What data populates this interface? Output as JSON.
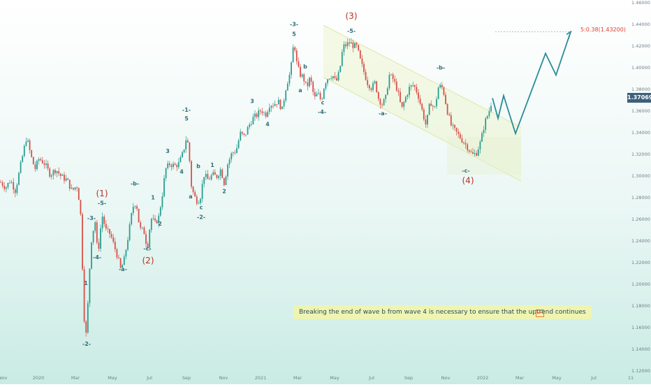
{
  "chart_data": {
    "type": "candlestick",
    "instrument_price": "1.37069",
    "y_ticks": [
      "1.46000",
      "1.44000",
      "1.42000",
      "1.40000",
      "1.38000",
      "1.36000",
      "1.34000",
      "1.32000",
      "1.30000",
      "1.28000",
      "1.26000",
      "1.24000",
      "1.22000",
      "1.20000",
      "1.18000",
      "1.16000",
      "1.14000",
      "1.12000"
    ],
    "x_ticks": [
      "Nov",
      "2020",
      "Mar",
      "May",
      "Jul",
      "Sep",
      "Nov",
      "2021",
      "Mar",
      "May",
      "Jul",
      "Sep",
      "Nov",
      "2022",
      "Mar",
      "May",
      "Jul",
      "11"
    ],
    "projection_target": "5:0.38(1.43200)",
    "note": "Breaking the end of wave b from wave 4 is necessary to ensure that the uptrend continues",
    "price_path": [
      [
        1,
        1.293
      ],
      [
        8,
        1.288
      ],
      [
        15,
        1.295
      ],
      [
        22,
        1.285
      ],
      [
        30,
        1.31
      ],
      [
        38,
        1.335
      ],
      [
        44,
        1.318
      ],
      [
        50,
        1.305
      ],
      [
        56,
        1.315
      ],
      [
        64,
        1.31
      ],
      [
        72,
        1.3
      ],
      [
        80,
        1.305
      ],
      [
        88,
        1.298
      ],
      [
        96,
        1.295
      ],
      [
        103,
        1.285
      ],
      [
        110,
        1.29
      ],
      [
        115,
        1.27
      ],
      [
        118,
        1.215
      ],
      [
        121,
        1.16
      ],
      [
        124,
        1.15
      ],
      [
        127,
        1.2
      ],
      [
        131,
        1.24
      ],
      [
        136,
        1.258
      ],
      [
        140,
        1.225
      ],
      [
        146,
        1.263
      ],
      [
        152,
        1.248
      ],
      [
        158,
        1.245
      ],
      [
        163,
        1.235
      ],
      [
        168,
        1.225
      ],
      [
        173,
        1.212
      ],
      [
        178,
        1.222
      ],
      [
        184,
        1.245
      ],
      [
        190,
        1.27
      ],
      [
        195,
        1.275
      ],
      [
        200,
        1.25
      ],
      [
        206,
        1.248
      ],
      [
        211,
        1.232
      ],
      [
        216,
        1.26
      ],
      [
        222,
        1.255
      ],
      [
        227,
        1.26
      ],
      [
        232,
        1.28
      ],
      [
        237,
        1.305
      ],
      [
        243,
        1.31
      ],
      [
        250,
        1.308
      ],
      [
        256,
        1.31
      ],
      [
        262,
        1.32
      ],
      [
        267,
        1.335
      ],
      [
        270,
        1.325
      ],
      [
        274,
        1.29
      ],
      [
        278,
        1.28
      ],
      [
        283,
        1.275
      ],
      [
        287,
        1.28
      ],
      [
        292,
        1.3
      ],
      [
        298,
        1.295
      ],
      [
        304,
        1.3
      ],
      [
        310,
        1.298
      ],
      [
        316,
        1.305
      ],
      [
        321,
        1.292
      ],
      [
        326,
        1.31
      ],
      [
        332,
        1.32
      ],
      [
        338,
        1.322
      ],
      [
        344,
        1.338
      ],
      [
        350,
        1.335
      ],
      [
        356,
        1.345
      ],
      [
        362,
        1.352
      ],
      [
        368,
        1.355
      ],
      [
        374,
        1.36
      ],
      [
        380,
        1.355
      ],
      [
        386,
        1.365
      ],
      [
        392,
        1.365
      ],
      [
        398,
        1.368
      ],
      [
        404,
        1.36
      ],
      [
        410,
        1.383
      ],
      [
        416,
        1.395
      ],
      [
        421,
        1.425
      ],
      [
        424,
        1.405
      ],
      [
        429,
        1.393
      ],
      [
        434,
        1.39
      ],
      [
        439,
        1.38
      ],
      [
        444,
        1.39
      ],
      [
        450,
        1.37
      ],
      [
        455,
        1.375
      ],
      [
        460,
        1.368
      ],
      [
        465,
        1.385
      ],
      [
        470,
        1.39
      ],
      [
        476,
        1.392
      ],
      [
        481,
        1.385
      ],
      [
        486,
        1.395
      ],
      [
        491,
        1.418
      ],
      [
        496,
        1.42
      ],
      [
        501,
        1.422
      ],
      [
        506,
        1.419
      ],
      [
        511,
        1.418
      ],
      [
        516,
        1.405
      ],
      [
        521,
        1.395
      ],
      [
        526,
        1.385
      ],
      [
        532,
        1.38
      ],
      [
        537,
        1.385
      ],
      [
        542,
        1.37
      ],
      [
        547,
        1.365
      ],
      [
        552,
        1.37
      ],
      [
        557,
        1.392
      ],
      [
        563,
        1.388
      ],
      [
        569,
        1.378
      ],
      [
        575,
        1.36
      ],
      [
        580,
        1.37
      ],
      [
        586,
        1.38
      ],
      [
        592,
        1.383
      ],
      [
        598,
        1.375
      ],
      [
        604,
        1.36
      ],
      [
        610,
        1.345
      ],
      [
        616,
        1.368
      ],
      [
        622,
        1.36
      ],
      [
        628,
        1.382
      ],
      [
        634,
        1.38
      ],
      [
        640,
        1.36
      ],
      [
        646,
        1.345
      ],
      [
        652,
        1.34
      ],
      [
        658,
        1.335
      ],
      [
        664,
        1.33
      ],
      [
        670,
        1.325
      ],
      [
        676,
        1.318
      ],
      [
        682,
        1.32
      ],
      [
        688,
        1.33
      ],
      [
        694,
        1.348
      ],
      [
        700,
        1.358
      ],
      [
        705,
        1.37069
      ]
    ],
    "projection_path": [
      [
        705,
        1.37069
      ],
      [
        713,
        1.352
      ],
      [
        721,
        1.373
      ],
      [
        738,
        1.338
      ],
      [
        781,
        1.412
      ],
      [
        796,
        1.392
      ],
      [
        817,
        1.432
      ]
    ],
    "channel": {
      "upper": [
        [
          463,
          1.438
        ],
        [
          703,
          1.358
        ]
      ],
      "lower": [
        [
          463,
          1.39
        ],
        [
          746,
          1.294
        ]
      ],
      "area_end_x": 746,
      "area_top": 1.335,
      "area_bottom": 1.3
    },
    "wave_labels": [
      {
        "text": "-3-",
        "x": 421,
        "p": 1.437,
        "color": "#2d6e78"
      },
      {
        "text": "5",
        "x": 421,
        "p": 1.428,
        "color": "#2d6e78"
      },
      {
        "text": "(3)",
        "x": 503,
        "p": 1.444,
        "color": "#b73026",
        "big": true
      },
      {
        "text": "-5-",
        "x": 503,
        "p": 1.431,
        "color": "#2d6e78"
      },
      {
        "text": "b",
        "x": 437,
        "p": 1.398,
        "color": "#2d6e78"
      },
      {
        "text": "a",
        "x": 430,
        "p": 1.376,
        "color": "#2d6e78"
      },
      {
        "text": "c",
        "x": 462,
        "p": 1.365,
        "color": "#2d6e78"
      },
      {
        "text": "-4-",
        "x": 461,
        "p": 1.356,
        "color": "#2d6e78"
      },
      {
        "text": "-a-",
        "x": 548,
        "p": 1.355,
        "color": "#2d6e78"
      },
      {
        "text": "-b-",
        "x": 631,
        "p": 1.397,
        "color": "#2d6e78"
      },
      {
        "text": "-c-",
        "x": 667,
        "p": 1.302,
        "color": "#2d6e78"
      },
      {
        "text": "(4)",
        "x": 670,
        "p": 1.292,
        "color": "#b73026",
        "big": true
      },
      {
        "text": "3",
        "x": 361,
        "p": 1.366,
        "color": "#2d6e78"
      },
      {
        "text": "4",
        "x": 383,
        "p": 1.345,
        "color": "#2d6e78"
      },
      {
        "text": "-1-",
        "x": 267,
        "p": 1.358,
        "color": "#2d6e78"
      },
      {
        "text": "5",
        "x": 267,
        "p": 1.35,
        "color": "#2d6e78"
      },
      {
        "text": "3",
        "x": 240,
        "p": 1.32,
        "color": "#2d6e78"
      },
      {
        "text": "4",
        "x": 260,
        "p": 1.301,
        "color": "#2d6e78"
      },
      {
        "text": "b",
        "x": 284,
        "p": 1.306,
        "color": "#2d6e78"
      },
      {
        "text": "a",
        "x": 273,
        "p": 1.278,
        "color": "#2d6e78"
      },
      {
        "text": "c",
        "x": 288,
        "p": 1.268,
        "color": "#2d6e78"
      },
      {
        "text": "-2-",
        "x": 288,
        "p": 1.259,
        "color": "#2d6e78"
      },
      {
        "text": "1",
        "x": 304,
        "p": 1.307,
        "color": "#2d6e78"
      },
      {
        "text": "2",
        "x": 321,
        "p": 1.283,
        "color": "#2d6e78"
      },
      {
        "text": "1",
        "x": 219,
        "p": 1.277,
        "color": "#2d6e78"
      },
      {
        "text": "2",
        "x": 229,
        "p": 1.253,
        "color": "#2d6e78"
      },
      {
        "text": "-b-",
        "x": 193,
        "p": 1.29,
        "color": "#2d6e78"
      },
      {
        "text": "-c-",
        "x": 211,
        "p": 1.23,
        "color": "#2d6e78"
      },
      {
        "text": "(2)",
        "x": 212,
        "p": 1.218,
        "color": "#b73026",
        "big": true
      },
      {
        "text": "(1)",
        "x": 146,
        "p": 1.28,
        "color": "#b73026",
        "big": true
      },
      {
        "text": "-5-",
        "x": 146,
        "p": 1.272,
        "color": "#2d6e78"
      },
      {
        "text": "-3-",
        "x": 131,
        "p": 1.258,
        "color": "#2d6e78"
      },
      {
        "text": "-4-",
        "x": 139,
        "p": 1.222,
        "color": "#2d6e78"
      },
      {
        "text": "-a-",
        "x": 176,
        "p": 1.211,
        "color": "#2d6e78"
      },
      {
        "text": "1",
        "x": 123,
        "p": 1.198,
        "color": "#2d6e78"
      },
      {
        "text": "-2-",
        "x": 124,
        "p": 1.142,
        "color": "#2d6e78"
      }
    ]
  }
}
